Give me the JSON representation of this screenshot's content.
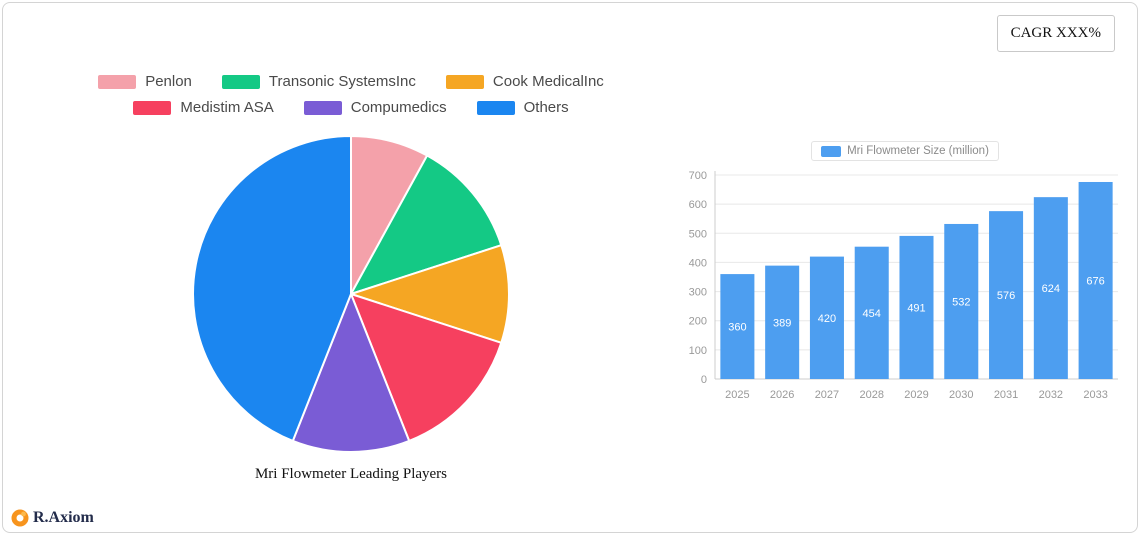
{
  "badge": {
    "label": "CAGR XXX%"
  },
  "brand": {
    "label": "R.Axiom"
  },
  "chart_data": [
    {
      "type": "pie",
      "title": "Mri Flowmeter Leading Players",
      "labels": [
        "Penlon",
        "Transonic SystemsInc",
        "Cook MedicalInc",
        "Medistim ASA",
        "Compumedics",
        "Others"
      ],
      "values": [
        8,
        12,
        10,
        14,
        12,
        44
      ],
      "colors": [
        "#f4a1aa",
        "#14c985",
        "#f5a623",
        "#f6405f",
        "#7a5cd5",
        "#1b86f0"
      ],
      "legend_position": "top",
      "start_angle_deg": -90,
      "direction": "clockwise"
    },
    {
      "type": "bar",
      "series_label": "Mri Flowmeter Size (million)",
      "categories": [
        "2025",
        "2026",
        "2027",
        "2028",
        "2029",
        "2030",
        "2031",
        "2032",
        "2033"
      ],
      "values": [
        360,
        389,
        420,
        454,
        491,
        532,
        576,
        624,
        676
      ],
      "bar_color": "#4d9ef0",
      "ylim": [
        0,
        700
      ],
      "yticks": [
        0,
        100,
        200,
        300,
        400,
        500,
        600,
        700
      ],
      "grid": true,
      "legend_position": "top",
      "value_labels": "inside-white"
    }
  ]
}
